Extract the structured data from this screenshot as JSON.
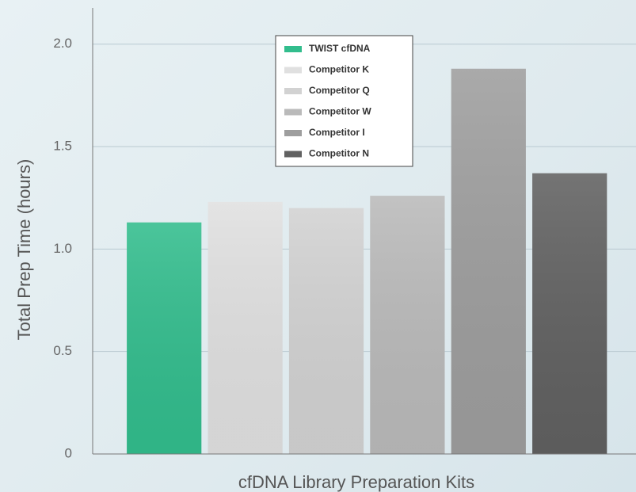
{
  "chart_data": {
    "type": "bar",
    "ylabel": "Total Prep Time (hours)",
    "xlabel": "cfDNA Library Preparation Kits",
    "categories": [
      "TWIST cfDNA",
      "Competitor K",
      "Competitor Q",
      "Competitor W",
      "Competitor I",
      "Competitor N"
    ],
    "values": [
      1.13,
      1.23,
      1.2,
      1.26,
      1.88,
      1.37
    ],
    "colors": [
      "#32bd8d",
      "#e0e0e0",
      "#d2d2d2",
      "#bababa",
      "#9e9e9e",
      "#616161"
    ],
    "ylim": [
      0,
      2.2
    ],
    "yticks": [
      0,
      0.5,
      {
        "value": 1,
        "label": "1.0"
      },
      1.5,
      {
        "value": 2,
        "label": "2.0"
      }
    ],
    "grid": true,
    "legend": "upper center"
  }
}
